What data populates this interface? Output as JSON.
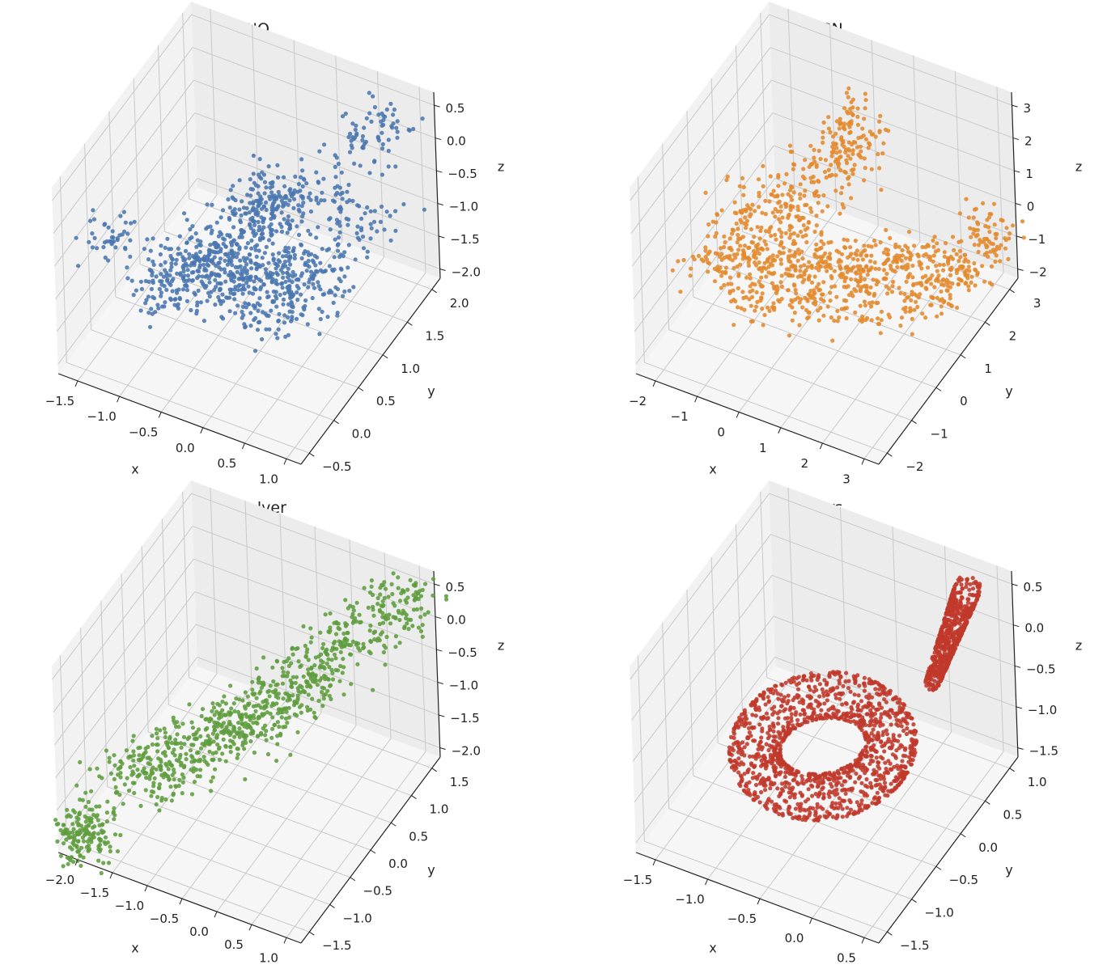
{
  "chart_data": [
    {
      "type": "scatter",
      "projection": "3d",
      "title": "EGNO",
      "xlabel": "x",
      "ylabel": "y",
      "zlabel": "z",
      "x_ticks": [
        "−1.5",
        "−1.0",
        "−0.5",
        "0.0",
        "0.5",
        "1.0"
      ],
      "y_ticks": [
        "−0.5",
        "0.0",
        "0.5",
        "1.0",
        "1.5",
        "2.0"
      ],
      "z_ticks": [
        "−2.0",
        "−1.5",
        "−1.0",
        "−0.5",
        "0.0",
        "0.5"
      ],
      "xlim": [
        -1.6,
        1.0
      ],
      "ylim": [
        -0.6,
        2.2
      ],
      "zlim": [
        -2.0,
        0.8
      ],
      "color": "#4a76b0",
      "grid": true,
      "series": [
        {
          "shape": "cloud",
          "points": [
            [
              -0.9,
              0.1,
              -1.0
            ],
            [
              -0.6,
              0.3,
              -0.9
            ],
            [
              -0.3,
              0.4,
              -1.1
            ],
            [
              0.0,
              0.5,
              -1.2
            ],
            [
              0.2,
              0.7,
              -1.3
            ],
            [
              -1.0,
              0.6,
              -1.4
            ],
            [
              -0.7,
              0.9,
              -1.3
            ],
            [
              -0.4,
              1.0,
              -1.5
            ],
            [
              -0.1,
              1.1,
              -1.6
            ],
            [
              0.3,
              1.2,
              -1.5
            ],
            [
              -1.1,
              1.2,
              -1.7
            ],
            [
              -0.8,
              1.3,
              -1.8
            ],
            [
              -0.5,
              1.4,
              -1.9
            ],
            [
              -0.2,
              1.5,
              -1.8
            ],
            [
              0.1,
              1.6,
              -1.7
            ],
            [
              -0.2,
              0.6,
              -0.3
            ],
            [
              -0.1,
              0.7,
              -0.2
            ],
            [
              0.0,
              0.8,
              0.0
            ],
            [
              -0.1,
              0.8,
              0.1
            ],
            [
              0.1,
              0.9,
              -0.1
            ],
            [
              0.6,
              1.9,
              0.4
            ],
            [
              0.4,
              1.7,
              0.2
            ],
            [
              0.2,
              1.5,
              -0.5
            ],
            [
              0.5,
              1.8,
              -1.1
            ],
            [
              -1.4,
              0.2,
              -0.7
            ]
          ]
        }
      ]
    },
    {
      "type": "scatter",
      "projection": "3d",
      "title": "MGN",
      "xlabel": "x",
      "ylabel": "y",
      "zlabel": "z",
      "x_ticks": [
        "−2",
        "−1",
        "0",
        "1",
        "2",
        "3"
      ],
      "y_ticks": [
        "−2",
        "−1",
        "0",
        "1",
        "2",
        "3"
      ],
      "z_ticks": [
        "−2",
        "−1",
        "0",
        "1",
        "2",
        "3"
      ],
      "xlim": [
        -2.5,
        3.2
      ],
      "ylim": [
        -2.3,
        3.4
      ],
      "zlim": [
        -2.6,
        3.2
      ],
      "color": "#e48a2e",
      "grid": true,
      "series": [
        {
          "shape": "elongated-cloud",
          "points": [
            [
              -1.5,
              -0.5,
              -0.3
            ],
            [
              -1.0,
              -0.2,
              -0.5
            ],
            [
              -0.5,
              0.2,
              -0.6
            ],
            [
              0.0,
              0.5,
              -0.8
            ],
            [
              0.5,
              0.9,
              -1.0
            ],
            [
              1.0,
              1.3,
              -1.2
            ],
            [
              1.5,
              1.7,
              -1.4
            ],
            [
              2.0,
              2.1,
              -1.5
            ],
            [
              2.5,
              2.4,
              -1.7
            ],
            [
              -1.2,
              0.3,
              0.4
            ],
            [
              -0.7,
              0.6,
              0.2
            ],
            [
              -0.3,
              0.9,
              0.9
            ],
            [
              0.2,
              1.2,
              1.5
            ],
            [
              0.4,
              1.4,
              2.1
            ],
            [
              0.5,
              1.6,
              2.8
            ],
            [
              -0.8,
              -0.4,
              -1.2
            ],
            [
              0.3,
              0.2,
              -1.4
            ],
            [
              1.2,
              0.8,
              -1.6
            ],
            [
              2.2,
              1.5,
              -1.9
            ],
            [
              2.8,
              2.9,
              -0.9
            ]
          ]
        }
      ]
    },
    {
      "type": "scatter",
      "projection": "3d",
      "title": "Transolver",
      "xlabel": "x",
      "ylabel": "y",
      "zlabel": "z",
      "x_ticks": [
        "−2.0",
        "−1.5",
        "−1.0",
        "−0.5",
        "0.0",
        "0.5",
        "1.0"
      ],
      "y_ticks": [
        "−1.5",
        "−1.0",
        "−0.5",
        "0.0",
        "0.5",
        "1.0",
        "1.5"
      ],
      "z_ticks": [
        "−2.0",
        "−1.5",
        "−1.0",
        "−0.5",
        "0.0",
        "0.5"
      ],
      "xlim": [
        -2.1,
        1.0
      ],
      "ylim": [
        -1.6,
        1.7
      ],
      "zlim": [
        -2.2,
        0.8
      ],
      "color": "#5f9d3e",
      "grid": true,
      "series": [
        {
          "shape": "diagonal-band",
          "points": [
            [
              -1.6,
              -0.9,
              -1.3
            ],
            [
              -1.3,
              -0.6,
              -1.2
            ],
            [
              -1.0,
              -0.3,
              -1.0
            ],
            [
              -0.7,
              0.0,
              -0.9
            ],
            [
              -0.4,
              0.3,
              -0.7
            ],
            [
              -0.1,
              0.6,
              -0.4
            ],
            [
              0.2,
              0.9,
              -0.1
            ],
            [
              0.4,
              1.1,
              0.2
            ],
            [
              0.6,
              1.3,
              0.3
            ],
            [
              0.8,
              1.5,
              0.5
            ],
            [
              -1.4,
              -0.5,
              -1.6
            ],
            [
              -1.1,
              -0.2,
              -1.5
            ],
            [
              -0.8,
              0.2,
              -1.3
            ],
            [
              -0.5,
              0.5,
              -1.1
            ],
            [
              -0.2,
              0.8,
              -0.8
            ],
            [
              -1.9,
              -1.4,
              -2.0
            ],
            [
              -1.85,
              -1.35,
              -1.9
            ],
            [
              -1.95,
              -1.45,
              -2.1
            ]
          ]
        }
      ]
    },
    {
      "type": "scatter",
      "projection": "3d",
      "title": "Ours",
      "xlabel": "x",
      "ylabel": "y",
      "zlabel": "z",
      "x_ticks": [
        "−1.5",
        "−1.0",
        "−0.5",
        "0.0",
        "0.5"
      ],
      "y_ticks": [
        "−1.5",
        "−1.0",
        "−0.5",
        "0.0",
        "0.5",
        "1.0"
      ],
      "z_ticks": [
        "−1.5",
        "−1.0",
        "−0.5",
        "0.0",
        "0.5"
      ],
      "xlim": [
        -1.8,
        0.8
      ],
      "ylim": [
        -1.6,
        1.3
      ],
      "zlim": [
        -1.8,
        0.8
      ],
      "color": "#c0392b",
      "grid": true,
      "series": [
        {
          "shape": "torus-with-neck",
          "points": [
            [
              -1.2,
              -0.8,
              -1.3
            ],
            [
              -0.8,
              -0.5,
              -1.2
            ],
            [
              -0.4,
              -0.2,
              -1.1
            ],
            [
              0.0,
              0.2,
              -1.0
            ],
            [
              0.3,
              0.6,
              -0.9
            ],
            [
              0.5,
              0.9,
              -0.7
            ],
            [
              -1.3,
              -0.3,
              -0.9
            ],
            [
              -0.9,
              0.1,
              -0.6
            ],
            [
              -0.5,
              0.4,
              -0.5
            ],
            [
              -0.1,
              0.7,
              -0.4
            ],
            [
              0.3,
              0.9,
              -0.3
            ],
            [
              0.4,
              1.0,
              0.2
            ],
            [
              0.45,
              1.1,
              0.5
            ],
            [
              0.35,
              1.05,
              0.6
            ],
            [
              -1.4,
              -1.2,
              -1.6
            ]
          ]
        }
      ]
    }
  ]
}
